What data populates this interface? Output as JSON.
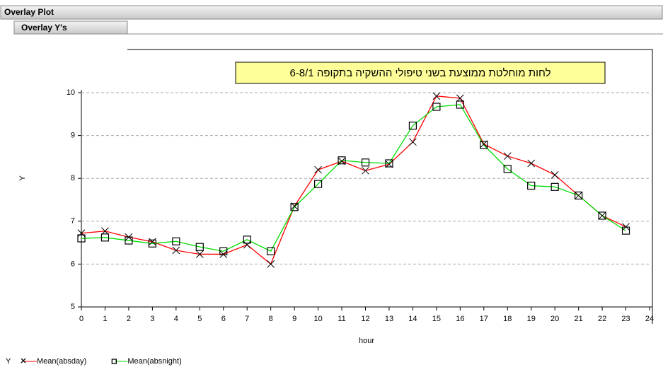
{
  "header": {
    "title": "Overlay Plot",
    "section": "Overlay Y's"
  },
  "chart_data": {
    "type": "line",
    "title": "לחות מוחלטת ממוצעת בשני טיפולי ההשקיה בתקופה 6-8/1",
    "x_label": "hour",
    "y_label": "Y",
    "legend_title": "Y",
    "x": [
      0,
      1,
      2,
      3,
      4,
      5,
      6,
      7,
      8,
      9,
      10,
      11,
      12,
      13,
      14,
      15,
      16,
      17,
      18,
      19,
      20,
      21,
      22,
      23
    ],
    "series": [
      {
        "name": "Mean(absday)",
        "color": "#ff0000",
        "marker": "x",
        "values": [
          6.72,
          6.77,
          6.63,
          6.52,
          6.32,
          6.23,
          6.23,
          6.45,
          6.0,
          7.35,
          8.2,
          8.4,
          8.18,
          8.33,
          8.85,
          9.92,
          9.87,
          8.8,
          8.52,
          8.35,
          8.08,
          7.6,
          7.13,
          6.87
        ]
      },
      {
        "name": "Mean(absnight)",
        "color": "#00dd00",
        "marker": "square",
        "values": [
          6.6,
          6.62,
          6.55,
          6.48,
          6.53,
          6.4,
          6.3,
          6.57,
          6.3,
          7.33,
          7.87,
          8.42,
          8.37,
          8.35,
          9.23,
          9.67,
          9.72,
          8.78,
          8.22,
          7.83,
          7.8,
          7.6,
          7.13,
          6.78
        ]
      }
    ],
    "xlim": [
      0,
      24
    ],
    "xticks": [
      0,
      1,
      2,
      3,
      4,
      5,
      6,
      7,
      8,
      9,
      10,
      11,
      12,
      13,
      14,
      15,
      16,
      17,
      18,
      19,
      20,
      21,
      22,
      23,
      24
    ],
    "ylim": [
      5,
      10
    ],
    "yticks": [
      5,
      6,
      7,
      8,
      9,
      10
    ],
    "grid": true
  }
}
